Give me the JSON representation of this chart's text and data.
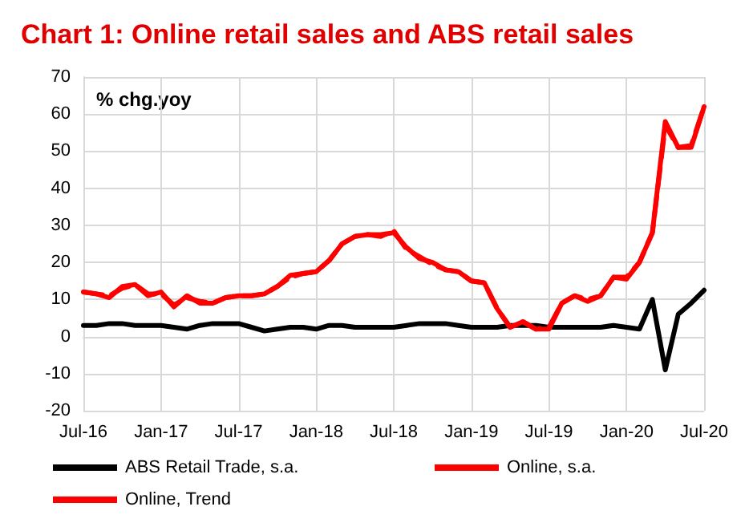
{
  "chart_data": {
    "type": "line",
    "title": "Chart 1: Online retail sales and ABS retail sales",
    "ylabel": "% chg.yoy",
    "categories": [
      "Jul-16",
      null,
      null,
      null,
      null,
      null,
      "Jan-17",
      null,
      null,
      null,
      null,
      null,
      "Jul-17",
      null,
      null,
      null,
      null,
      null,
      "Jan-18",
      null,
      null,
      null,
      null,
      null,
      "Jul-18",
      null,
      null,
      null,
      null,
      null,
      "Jan-19",
      null,
      null,
      null,
      null,
      null,
      "Jul-19",
      null,
      null,
      null,
      null,
      null,
      "Jan-20",
      null,
      null,
      null,
      null,
      null,
      "Jul-20"
    ],
    "series": [
      {
        "name": "ABS Retail Trade, s.a.",
        "color": "#000000",
        "line_style": "solid",
        "values": [
          3,
          3,
          3.5,
          3.5,
          3,
          3,
          3,
          2.5,
          2,
          3,
          3.5,
          3.5,
          3.5,
          2.5,
          1.5,
          2,
          2.5,
          2.5,
          2,
          3,
          3,
          2.5,
          2.5,
          2.5,
          2.5,
          3,
          3.5,
          3.5,
          3.5,
          3,
          2.5,
          2.5,
          2.5,
          3,
          3,
          3,
          2.5,
          2.5,
          2.5,
          2.5,
          2.5,
          3,
          2.5,
          2,
          10,
          -9,
          6,
          9,
          12.5
        ]
      },
      {
        "name": "Online, s.a.",
        "color": "#ff0000",
        "line_style": "solid",
        "values": [
          12,
          11.5,
          10.5,
          13.5,
          14,
          11,
          12,
          8,
          11,
          9,
          9,
          10.5,
          11,
          11,
          11.5,
          13.5,
          16.5,
          17,
          17.5,
          20.5,
          25,
          27,
          27.5,
          27.5,
          28,
          24,
          21,
          20,
          18,
          17.5,
          15,
          14.5,
          7.5,
          2.5,
          4,
          2,
          2,
          9,
          11,
          9.5,
          11,
          16,
          15.5,
          20,
          28,
          58,
          51,
          51,
          62
        ]
      },
      {
        "name": "Online, Trend",
        "color": "#ff0000",
        "line_style": "dashed",
        "values": [
          12,
          11.5,
          11,
          13,
          14,
          11.5,
          11.5,
          8.5,
          10.5,
          9.5,
          9,
          10.5,
          11,
          11,
          11.5,
          13.5,
          16,
          17,
          17.5,
          20.5,
          25,
          27,
          27.5,
          27,
          28.5,
          23.5,
          21.5,
          19.5,
          18,
          17.5,
          15,
          14.5,
          7.5,
          2.5,
          4,
          2,
          2.5,
          9,
          11,
          10,
          11,
          16,
          16,
          20,
          28,
          57,
          51,
          51.5,
          62
        ]
      }
    ],
    "ylim": [
      -20,
      70
    ],
    "yticks": [
      -20,
      -10,
      0,
      10,
      20,
      30,
      40,
      50,
      60,
      70
    ],
    "grid": true,
    "legend": "bottom",
    "marker": "none"
  }
}
